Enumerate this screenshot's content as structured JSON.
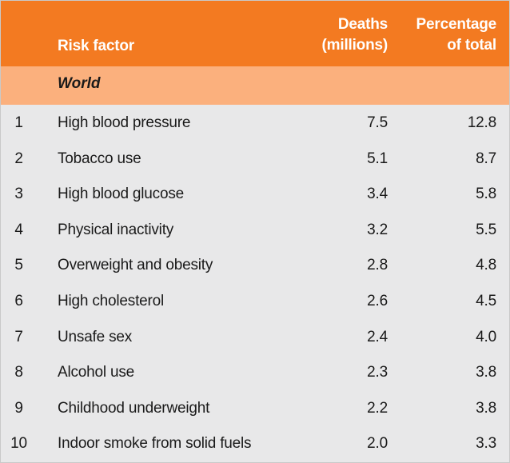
{
  "header": {
    "risk_factor": "Risk factor",
    "deaths_line1": "Deaths",
    "deaths_line2": "(millions)",
    "pct_line1": "Percentage",
    "pct_line2": "of total"
  },
  "colors": {
    "header_bg": "#f37a21",
    "region_bg": "#fbb07d",
    "body_bg": "#e8e8e9"
  },
  "region": "World",
  "rows": [
    {
      "rank": "1",
      "name": "High blood pressure",
      "deaths": "7.5",
      "pct": "12.8"
    },
    {
      "rank": "2",
      "name": "Tobacco use",
      "deaths": "5.1",
      "pct": "8.7"
    },
    {
      "rank": "3",
      "name": "High blood glucose",
      "deaths": "3.4",
      "pct": "5.8"
    },
    {
      "rank": "4",
      "name": "Physical inactivity",
      "deaths": "3.2",
      "pct": "5.5"
    },
    {
      "rank": "5",
      "name": "Overweight and obesity",
      "deaths": "2.8",
      "pct": "4.8"
    },
    {
      "rank": "6",
      "name": "High cholesterol",
      "deaths": "2.6",
      "pct": "4.5"
    },
    {
      "rank": "7",
      "name": "Unsafe sex",
      "deaths": "2.4",
      "pct": "4.0"
    },
    {
      "rank": "8",
      "name": "Alcohol use",
      "deaths": "2.3",
      "pct": "3.8"
    },
    {
      "rank": "9",
      "name": "Childhood underweight",
      "deaths": "2.2",
      "pct": "3.8"
    },
    {
      "rank": "10",
      "name": "Indoor smoke from solid fuels",
      "deaths": "2.0",
      "pct": "3.3"
    }
  ]
}
